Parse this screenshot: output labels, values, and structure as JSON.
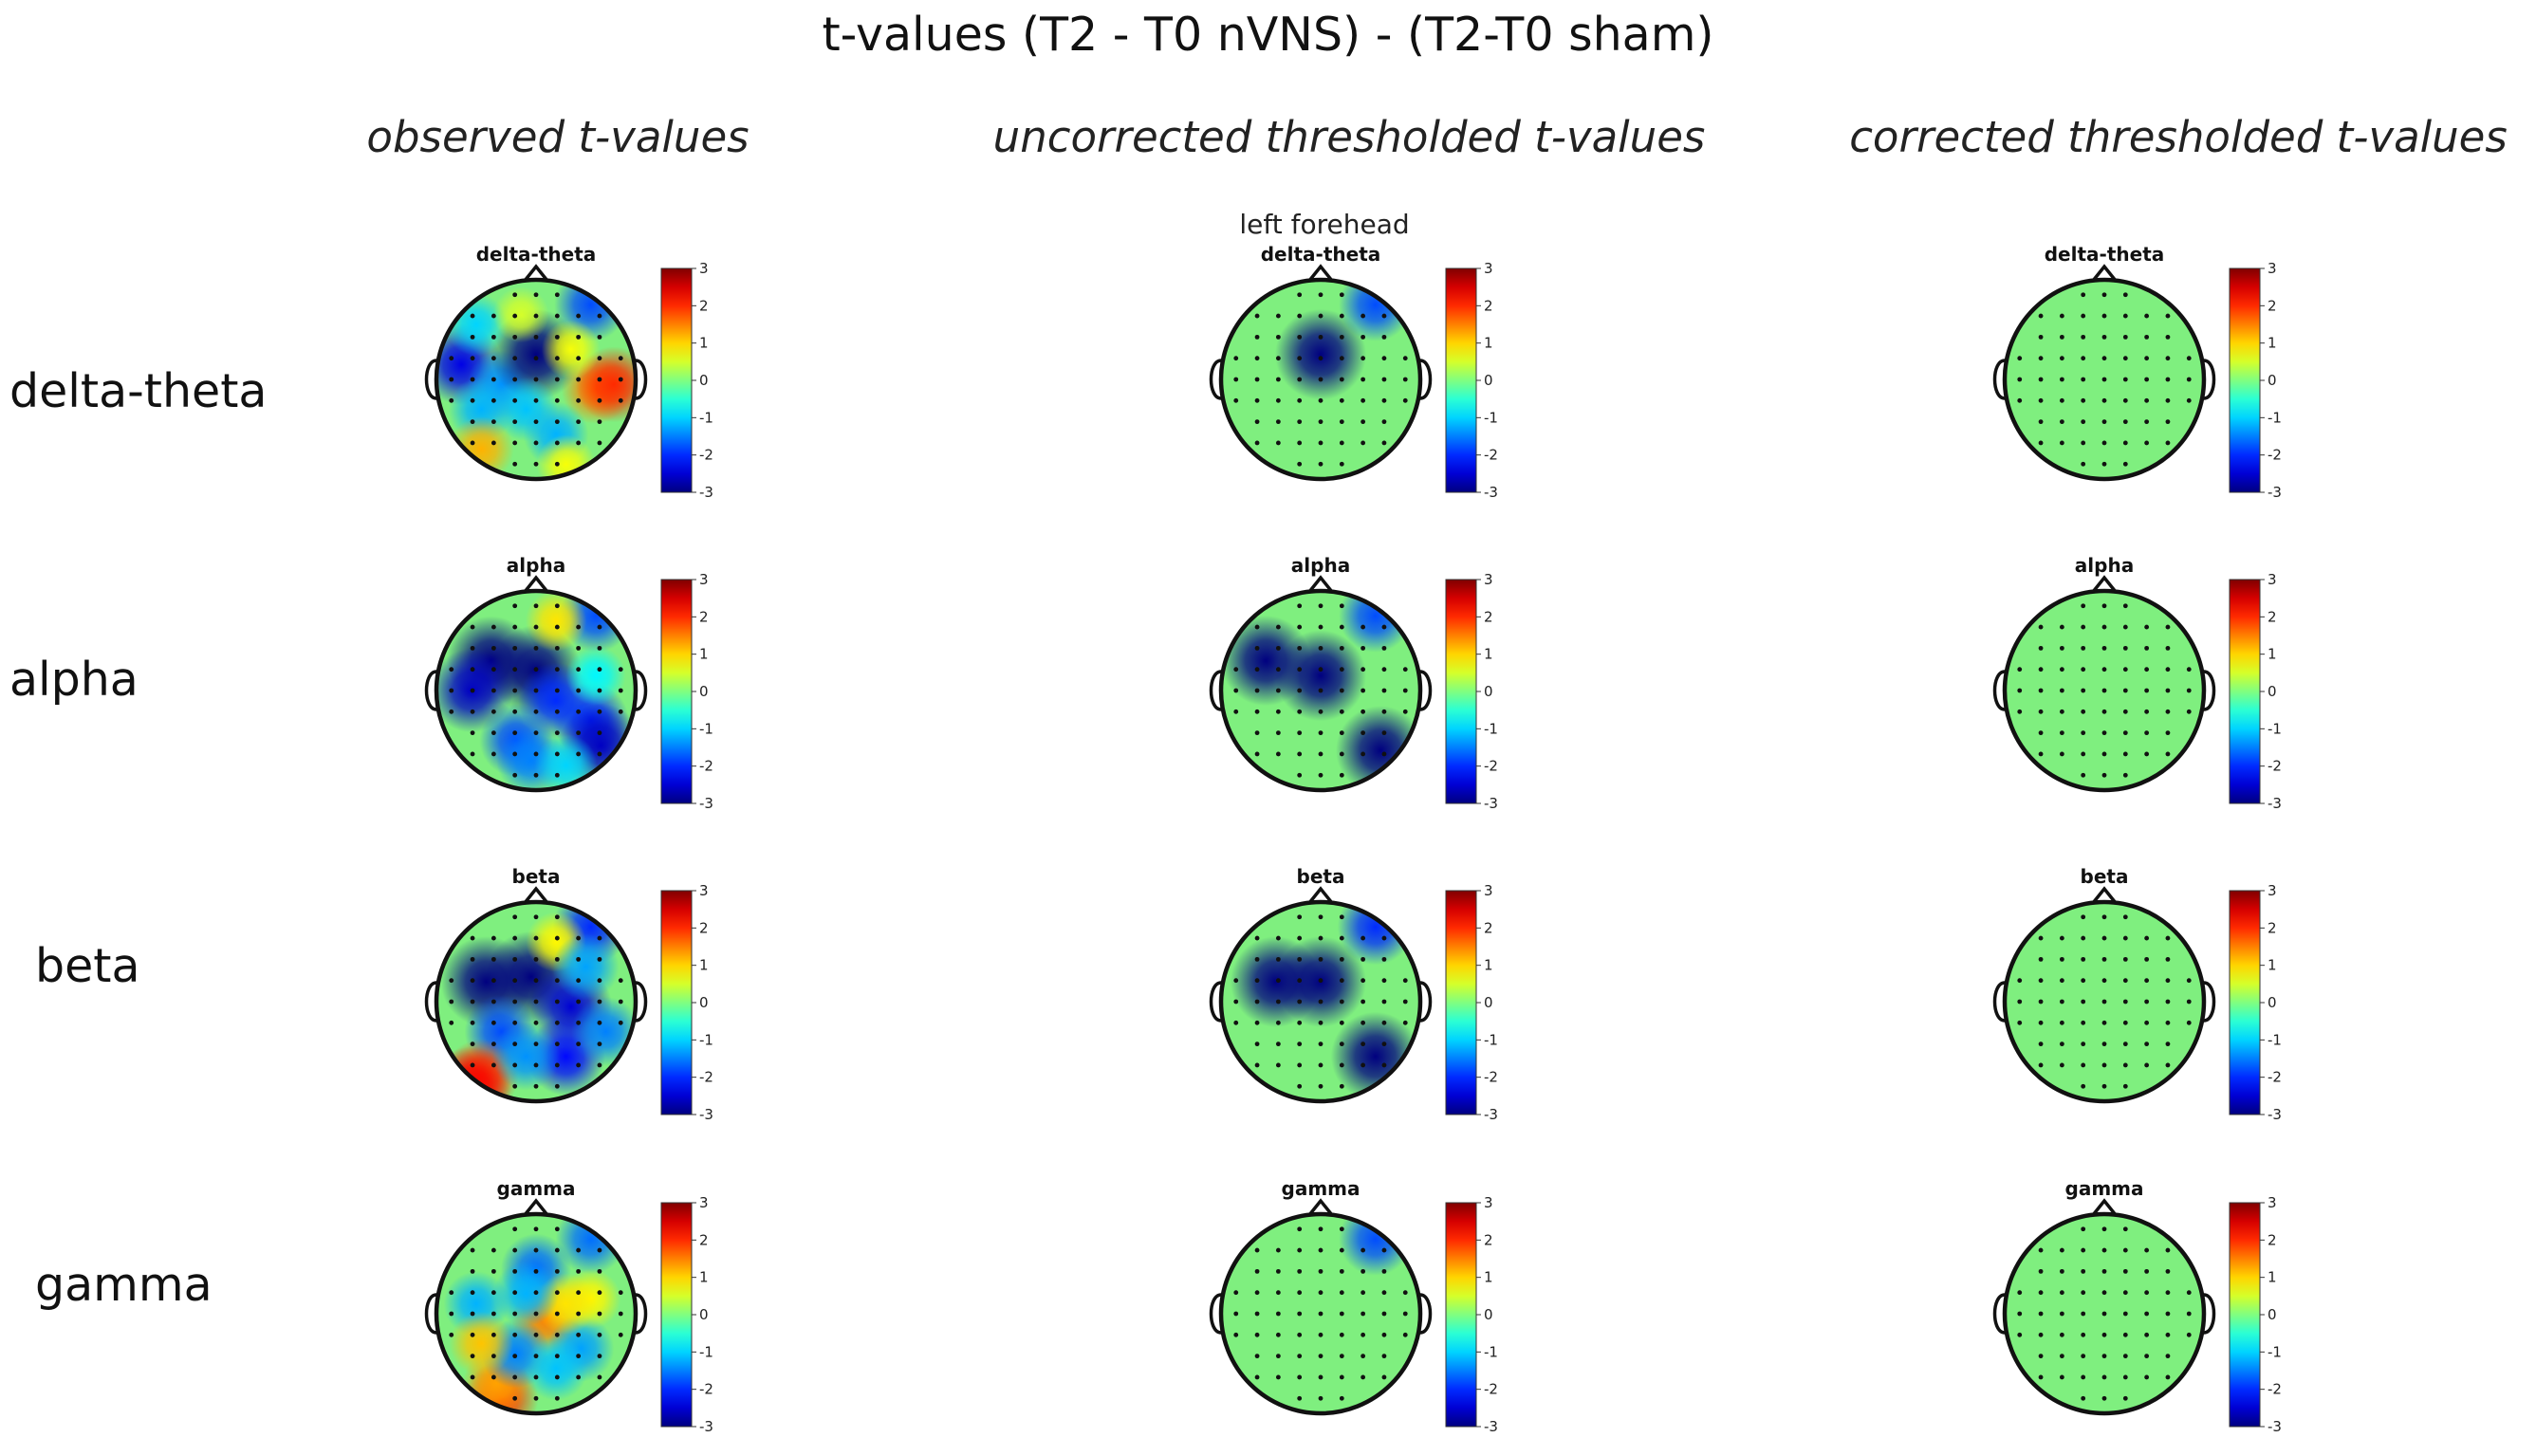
{
  "title": "t-values (T2 - T0 nVNS) - (T2-T0 sham)",
  "columns": [
    "observed t-values",
    "uncorrected thresholded  t-values",
    "corrected thresholded  t-values"
  ],
  "rows": [
    "delta-theta",
    "alpha",
    "beta",
    "gamma"
  ],
  "annotation": "left forehead",
  "colorbar_ticks": [
    "3",
    "2",
    "1",
    "0",
    "-1",
    "-2",
    "-3"
  ],
  "colorbar_range": [
    -3,
    3
  ],
  "colormap": "jet",
  "neutral_color": "#7fef7f",
  "electrode_color": "#111111",
  "outline_color": "#111111",
  "blobs": [
    [
      [
        [
          -0.75,
          -0.15,
          -2.4
        ],
        [
          -0.35,
          0.05,
          -1.4
        ],
        [
          0,
          -0.25,
          -3.3
        ],
        [
          0.55,
          -0.75,
          -1.8
        ],
        [
          0.6,
          0.1,
          1.5
        ],
        [
          0.78,
          0.05,
          2
        ],
        [
          -0.1,
          0.3,
          -1.1
        ],
        [
          -0.55,
          0.3,
          -1.2
        ],
        [
          0.2,
          0.55,
          -1.2
        ],
        [
          -0.55,
          0.7,
          1.2
        ],
        [
          0.3,
          0.85,
          0.7
        ],
        [
          -0.6,
          -0.55,
          -1.0
        ],
        [
          0.35,
          -0.3,
          0.7
        ],
        [
          -0.15,
          -0.65,
          0.5
        ]
      ],
      [
        [
          -0.45,
          -0.3,
          -3
        ],
        [
          -0.65,
          0.0,
          -2.6
        ],
        [
          0,
          -0.2,
          -3.3
        ],
        [
          0.2,
          0.1,
          -2
        ],
        [
          0.55,
          0.3,
          -2
        ],
        [
          0.65,
          0.55,
          -2.6
        ],
        [
          0.6,
          -0.75,
          -1.8
        ],
        [
          -0.2,
          0.5,
          -1.8
        ],
        [
          0.2,
          -0.7,
          0.9
        ],
        [
          -0.05,
          0.7,
          -1.5
        ],
        [
          0.3,
          0.75,
          -1.0
        ],
        [
          0.6,
          -0.15,
          -0.8
        ]
      ],
      [
        [
          -0.5,
          -0.2,
          -3.2
        ],
        [
          -0.05,
          -0.25,
          -3.2
        ],
        [
          0.35,
          0.05,
          -2.5
        ],
        [
          0.55,
          -0.75,
          -2
        ],
        [
          -0.35,
          0.3,
          -1.8
        ],
        [
          0.3,
          0.55,
          -2.2
        ],
        [
          -0.55,
          0.75,
          1.9
        ],
        [
          -0.65,
          0.85,
          2.3
        ],
        [
          0.2,
          -0.6,
          0.8
        ],
        [
          0.5,
          -0.35,
          -1.3
        ],
        [
          -0.1,
          0.55,
          -1.4
        ],
        [
          0.7,
          0.3,
          -1.5
        ]
      ],
      [
        [
          -0.35,
          0.85,
          1.9
        ],
        [
          -0.4,
          0.7,
          1.3
        ],
        [
          0,
          -0.45,
          -1.6
        ],
        [
          0.55,
          -0.75,
          -1.6
        ],
        [
          0.1,
          0.05,
          1.5
        ],
        [
          -0.2,
          0.4,
          -1.5
        ],
        [
          0.45,
          0.35,
          -1.3
        ],
        [
          -0.6,
          -0.1,
          -1.2
        ],
        [
          0.55,
          -0.15,
          0.8
        ],
        [
          0.2,
          0.55,
          -1.1
        ],
        [
          -0.55,
          0.3,
          1.1
        ],
        [
          0.3,
          -0.1,
          0.9
        ],
        [
          -0.1,
          -0.2,
          -1.2
        ]
      ]
    ],
    [
      [
        [
          0,
          -0.25,
          -3.2
        ],
        [
          0.55,
          -0.75,
          -1.8
        ]
      ],
      [
        [
          -0.55,
          -0.3,
          -3.1
        ],
        [
          0,
          -0.15,
          -3.3
        ],
        [
          0.6,
          0.6,
          -3.0
        ],
        [
          0.55,
          -0.75,
          -1.8
        ]
      ],
      [
        [
          -0.45,
          -0.2,
          -3.2
        ],
        [
          0,
          -0.2,
          -3.2
        ],
        [
          0.55,
          0.55,
          -3.0
        ],
        [
          0.55,
          -0.75,
          -2.0
        ]
      ],
      [
        [
          0.55,
          -0.75,
          -1.8
        ]
      ]
    ],
    [
      [],
      [],
      [],
      []
    ]
  ]
}
